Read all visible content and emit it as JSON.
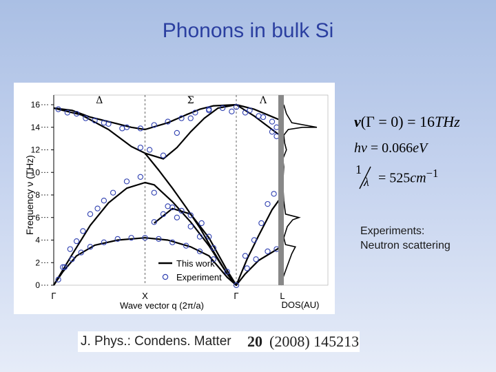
{
  "slide": {
    "title": "Phonons in bulk Si",
    "note_lines": [
      "Experiments:",
      "Neutron scattering"
    ]
  },
  "equations": {
    "eq1": {
      "lhs": "ν",
      "paren_open": "(",
      "arg": "Γ = 0",
      "paren_close": ")",
      "rhs": " = 16",
      "unit": "THz"
    },
    "eq2": {
      "lhs_italic": "hν",
      "rhs": " = 0.066",
      "unit": "eV"
    },
    "eq3": {
      "num": "1",
      "den": "λ",
      "rhs": "= 525",
      "unit": "cm",
      "exp": "−1"
    }
  },
  "reference": {
    "journal": "J. Phys.: Condens. Matter",
    "volume": "20",
    "rest": "(2008) 145213"
  },
  "chart_data": {
    "type": "line",
    "ylabel": "Frequency ν (THz)",
    "xlabel": "Wave vector q (2π/a)",
    "ylim": [
      0,
      16
    ],
    "yticks": [
      0,
      2,
      4,
      6,
      8,
      10,
      12,
      14,
      16
    ],
    "direction_labels": [
      {
        "text": "Δ",
        "x": 0.5
      },
      {
        "text": "Σ",
        "x": 1.5
      },
      {
        "text": "Λ",
        "x": 2.3
      }
    ],
    "point_labels": [
      {
        "text": "Γ",
        "x": 0
      },
      {
        "text": "X",
        "x": 1
      },
      {
        "text": "Γ",
        "x": 2
      },
      {
        "text": "L",
        "x": 2.5
      }
    ],
    "dos_label": "DOS(AU)",
    "legend": {
      "placement": "bottom-center",
      "theory": "This work",
      "experiment": "Experiment"
    },
    "theory_series": [
      {
        "name": "",
        "points": [
          [
            0,
            0
          ],
          [
            0.1,
            1.2
          ],
          [
            0.25,
            2.6
          ],
          [
            0.45,
            3.55
          ],
          [
            0.7,
            4.0
          ],
          [
            1,
            4.2
          ],
          [
            1.25,
            4.0
          ],
          [
            1.5,
            3.4
          ],
          [
            1.7,
            2.6
          ],
          [
            1.9,
            0.7
          ],
          [
            2,
            0
          ],
          [
            2.1,
            1.0
          ],
          [
            2.25,
            2.2
          ],
          [
            2.5,
            3.4
          ]
        ]
      },
      {
        "name": "",
        "points": [
          [
            0,
            0
          ],
          [
            0.2,
            2.7
          ],
          [
            0.4,
            5.3
          ],
          [
            0.6,
            7.3
          ],
          [
            0.8,
            8.6
          ],
          [
            1,
            9.1
          ],
          [
            1.1,
            8.9
          ],
          [
            1.3,
            7.4
          ],
          [
            1.5,
            5.6
          ],
          [
            1.7,
            3.5
          ],
          [
            1.9,
            1.0
          ],
          [
            2,
            0
          ],
          [
            2.12,
            2.3
          ],
          [
            2.25,
            4.4
          ],
          [
            2.4,
            6.7
          ],
          [
            2.5,
            7.8
          ]
        ]
      },
      {
        "name": "",
        "points": [
          [
            1.1,
            5.5
          ],
          [
            1.3,
            6.8
          ],
          [
            1.5,
            6.3
          ],
          [
            1.7,
            4.2
          ],
          [
            1.9,
            1.3
          ],
          [
            2,
            0
          ]
        ]
      },
      {
        "name": "",
        "points": [
          [
            0,
            15.7
          ],
          [
            0.2,
            15.5
          ],
          [
            0.4,
            14.9
          ],
          [
            0.7,
            14.3
          ],
          [
            0.85,
            14.0
          ],
          [
            1,
            13.8
          ],
          [
            1.25,
            14.4
          ],
          [
            1.45,
            15.1
          ],
          [
            1.6,
            15.6
          ],
          [
            1.75,
            15.9
          ],
          [
            2,
            16.0
          ],
          [
            2.2,
            15.0
          ],
          [
            2.4,
            13.8
          ],
          [
            2.5,
            13.2
          ]
        ]
      },
      {
        "name": "",
        "points": [
          [
            0,
            15.7
          ],
          [
            0.3,
            15.1
          ],
          [
            0.6,
            13.8
          ],
          [
            0.85,
            12.3
          ],
          [
            1,
            11.7
          ],
          [
            1.2,
            11.2
          ],
          [
            1.35,
            12.2
          ],
          [
            1.5,
            13.6
          ],
          [
            1.65,
            14.8
          ],
          [
            1.8,
            15.7
          ],
          [
            2,
            16.0
          ],
          [
            2.2,
            15.6
          ],
          [
            2.35,
            15.1
          ],
          [
            2.5,
            14.6
          ]
        ]
      },
      {
        "name": "",
        "points": [
          [
            1,
            11.7
          ],
          [
            1.15,
            10.2
          ],
          [
            1.3,
            8.6
          ],
          [
            1.45,
            6.9
          ],
          [
            1.6,
            5.1
          ],
          [
            1.75,
            3.0
          ],
          [
            1.9,
            1.0
          ],
          [
            2,
            0
          ]
        ]
      }
    ],
    "experiment_points": [
      [
        0.05,
        0.5
      ],
      [
        0.12,
        1.6
      ],
      [
        0.2,
        2.3
      ],
      [
        0.3,
        2.9
      ],
      [
        0.4,
        3.4
      ],
      [
        0.55,
        3.8
      ],
      [
        0.7,
        4.1
      ],
      [
        0.85,
        4.2
      ],
      [
        1,
        4.2
      ],
      [
        1.15,
        4.1
      ],
      [
        1.3,
        3.8
      ],
      [
        1.45,
        3.5
      ],
      [
        1.6,
        3.0
      ],
      [
        1.75,
        2.3
      ],
      [
        1.9,
        1.2
      ],
      [
        2,
        0
      ],
      [
        2.12,
        1.5
      ],
      [
        2.22,
        2.3
      ],
      [
        2.35,
        3.0
      ],
      [
        2.45,
        3.2
      ],
      [
        0.1,
        1.6
      ],
      [
        0.18,
        3.2
      ],
      [
        0.25,
        3.9
      ],
      [
        0.32,
        4.8
      ],
      [
        0.4,
        6.3
      ],
      [
        0.48,
        6.8
      ],
      [
        0.55,
        7.5
      ],
      [
        0.65,
        8.2
      ],
      [
        0.8,
        9.2
      ],
      [
        0.95,
        9.6
      ],
      [
        1.1,
        8.2
      ],
      [
        1.25,
        7.0
      ],
      [
        1.35,
        6.0
      ],
      [
        1.5,
        5.2
      ],
      [
        1.6,
        4.3
      ],
      [
        1.75,
        3.3
      ],
      [
        2.1,
        2.6
      ],
      [
        2.2,
        4.0
      ],
      [
        2.28,
        5.5
      ],
      [
        2.35,
        7.2
      ],
      [
        2.42,
        8.1
      ],
      [
        1.1,
        5.6
      ],
      [
        1.2,
        6.3
      ],
      [
        1.3,
        6.9
      ],
      [
        1.4,
        6.6
      ],
      [
        1.5,
        6.2
      ],
      [
        1.62,
        5.5
      ],
      [
        1.7,
        4.3
      ],
      [
        0.05,
        15.6
      ],
      [
        0.25,
        15.2
      ],
      [
        0.45,
        14.6
      ],
      [
        0.6,
        14.3
      ],
      [
        0.8,
        14.0
      ],
      [
        0.95,
        13.9
      ],
      [
        1.1,
        14.2
      ],
      [
        1.25,
        14.5
      ],
      [
        1.4,
        14.8
      ],
      [
        1.55,
        15.3
      ],
      [
        1.7,
        15.6
      ],
      [
        1.85,
        15.7
      ],
      [
        2.0,
        15.8
      ],
      [
        2.15,
        15.5
      ],
      [
        2.3,
        14.9
      ],
      [
        2.4,
        13.6
      ],
      [
        2.45,
        13.2
      ],
      [
        0.15,
        15.3
      ],
      [
        0.35,
        14.8
      ],
      [
        0.55,
        14.4
      ],
      [
        0.75,
        13.9
      ],
      [
        0.95,
        12.2
      ],
      [
        1.05,
        12.0
      ],
      [
        1.2,
        11.5
      ],
      [
        1.35,
        13.5
      ],
      [
        1.5,
        14.8
      ],
      [
        1.7,
        15.5
      ],
      [
        1.95,
        15.4
      ],
      [
        2.1,
        15.3
      ],
      [
        2.25,
        15.0
      ],
      [
        2.4,
        14.5
      ],
      [
        2.45,
        14.0
      ]
    ]
  }
}
